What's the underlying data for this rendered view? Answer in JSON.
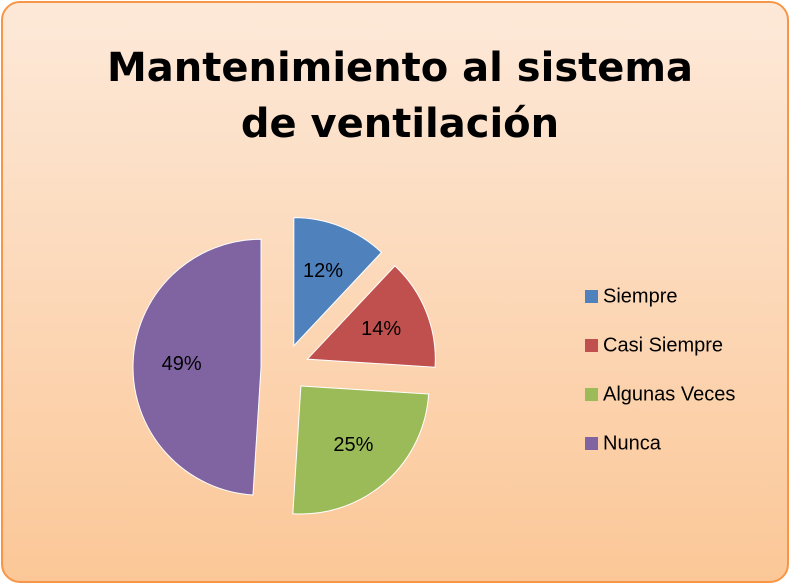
{
  "chart_data": {
    "type": "pie",
    "title": "Mantenimiento al sistema de ventilación",
    "categories": [
      "Siempre",
      "Casi Siempre",
      "Algunas Veces",
      "Nunca"
    ],
    "values": [
      12,
      14,
      25,
      49
    ],
    "value_labels": [
      "12%",
      "14%",
      "25%",
      "49%"
    ],
    "colors": [
      "#4f81bd",
      "#c0504d",
      "#9bbb59",
      "#8064a2"
    ],
    "legend": "right"
  }
}
